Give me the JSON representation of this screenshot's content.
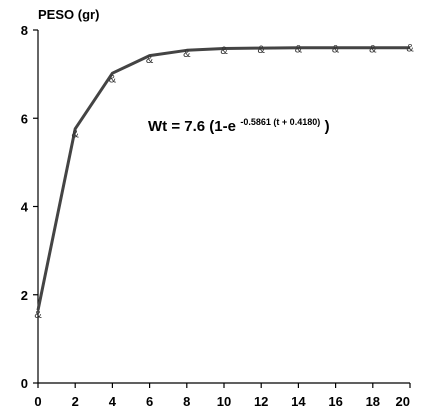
{
  "chart_data": {
    "type": "line",
    "ylabel": "PESO (gr)",
    "xlabel": "",
    "xlim": [
      0,
      20
    ],
    "ylim": [
      0,
      8
    ],
    "x_ticks": [
      "0",
      "2",
      "4",
      "6",
      "8",
      "10",
      "12",
      "14",
      "16",
      "18",
      "20"
    ],
    "y_ticks": [
      "0",
      "2",
      "4",
      "6",
      "8"
    ],
    "grid": false,
    "line_color": "#444444",
    "marker_symbol": "&",
    "observed": {
      "x": [
        0,
        2,
        4,
        6,
        8,
        10,
        12,
        14,
        16,
        18,
        20
      ],
      "y": [
        1.56,
        5.65,
        6.9,
        7.34,
        7.48,
        7.55,
        7.57,
        7.58,
        7.58,
        7.58,
        7.6
      ]
    },
    "fitted": {
      "x": [
        0,
        2,
        4,
        6,
        8,
        10,
        12,
        14,
        16,
        18,
        20
      ],
      "y": [
        1.65,
        5.76,
        7.02,
        7.42,
        7.54,
        7.58,
        7.59,
        7.6,
        7.6,
        7.6,
        7.6
      ]
    },
    "annotation": {
      "main": "Wt = 7.6 (1-e",
      "exponent": "-0.5861 (t + 0.4180)",
      "close": ")"
    }
  }
}
